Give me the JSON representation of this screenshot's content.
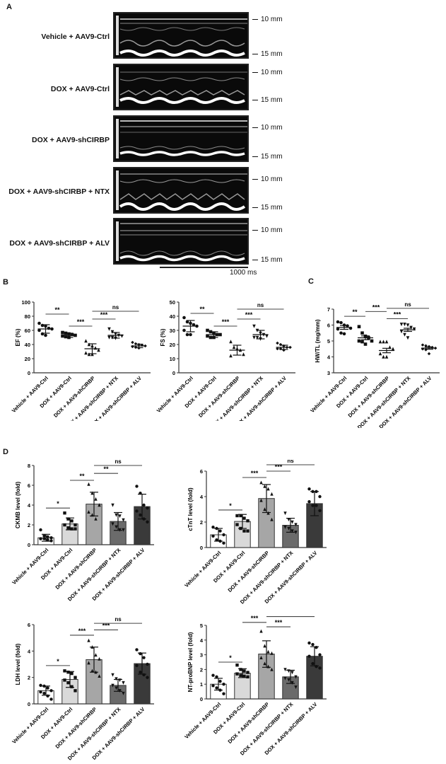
{
  "panels": {
    "A": {
      "letter": "A"
    },
    "B": {
      "letter": "B"
    },
    "C": {
      "letter": "C"
    },
    "D": {
      "letter": "D"
    }
  },
  "echo": {
    "rows": [
      {
        "label": "Vehicle + AAV9-Ctrl",
        "mm_top": "10 mm",
        "mm_bottom": "15 mm"
      },
      {
        "label": "DOX + AAV9-Ctrl",
        "mm_top": "10 mm",
        "mm_bottom": "15 mm"
      },
      {
        "label": "DOX + AAV9-shCIRBP",
        "mm_top": "10 mm",
        "mm_bottom": "15 mm"
      },
      {
        "label": "DOX + AAV9-shCIRBP + NTX",
        "mm_top": "10 mm",
        "mm_bottom": "15 mm"
      },
      {
        "label": "DOX + AAV9-shCIRBP + ALV",
        "mm_top": "10 mm",
        "mm_bottom": "15 mm"
      }
    ],
    "scale_label": "1000 ms"
  },
  "groups": [
    "Vehicle + AAV9-Ctrl",
    "DOX + AAV9-Ctrl",
    "DOX + AAV9-shCIRBP",
    "DOX + AAV9-shCIRBP + NTX",
    "DOX + AAV9-shCIRBP + ALV"
  ],
  "chart_data": [
    {
      "id": "EF",
      "panel": "B",
      "type": "scatter",
      "title": "",
      "xlabel": "",
      "ylabel": "EF (%)",
      "ylim": [
        0,
        100
      ],
      "yticks": [
        0,
        20,
        40,
        60,
        80,
        100
      ],
      "categories": [
        "Vehicle + AAV9-Ctrl",
        "DOX + AAV9-Ctrl",
        "DOX + AAV9-shCIRBP",
        "DOX + AAV9-shCIRBP + NTX",
        "DOX + AAV9-shCIRBP + ALV"
      ],
      "means": [
        62,
        53,
        34,
        53,
        38
      ],
      "sd": [
        6,
        3,
        7,
        4,
        2.5
      ],
      "points": [
        [
          70,
          67,
          66,
          63,
          62,
          60,
          55,
          53
        ],
        [
          57,
          56,
          55,
          54,
          53,
          52,
          51,
          50
        ],
        [
          45,
          40,
          38,
          35,
          32,
          28,
          26,
          26
        ],
        [
          62,
          58,
          55,
          53,
          52,
          50,
          50,
          49
        ],
        [
          43,
          41,
          40,
          39,
          38,
          37,
          36,
          35
        ]
      ],
      "markers": [
        "circle",
        "square",
        "triangle",
        "triangle-down",
        "diamond"
      ],
      "significance": [
        {
          "from": 0,
          "to": 1,
          "label": "**",
          "y": 83
        },
        {
          "from": 1,
          "to": 2,
          "label": "***",
          "y": 66
        },
        {
          "from": 2,
          "to": 3,
          "label": "***",
          "y": 76
        },
        {
          "from": 2,
          "to": 4,
          "label": "ns",
          "y": 87
        }
      ]
    },
    {
      "id": "FS",
      "panel": "B",
      "type": "scatter",
      "title": "",
      "xlabel": "",
      "ylabel": "FS (%)",
      "ylim": [
        0,
        50
      ],
      "yticks": [
        0,
        10,
        20,
        30,
        40,
        50
      ],
      "categories": [
        "Vehicle + AAV9-Ctrl",
        "DOX + AAV9-Ctrl",
        "DOX + AAV9-shCIRBP",
        "DOX + AAV9-shCIRBP + NTX",
        "DOX + AAV9-shCIRBP + ALV"
      ],
      "means": [
        33,
        27,
        16,
        27,
        18
      ],
      "sd": [
        4,
        2,
        3.5,
        3,
        1.5
      ],
      "points": [
        [
          39,
          36,
          35,
          34,
          33,
          30,
          27,
          27
        ],
        [
          30,
          29,
          28,
          27,
          27,
          26,
          25,
          25
        ],
        [
          22,
          18,
          17,
          16,
          13,
          12
        ],
        [
          33,
          30,
          28,
          27,
          26,
          25,
          25,
          24
        ],
        [
          21,
          20,
          19,
          18,
          18,
          17,
          17,
          16
        ]
      ],
      "markers": [
        "circle",
        "square",
        "triangle",
        "triangle-down",
        "diamond"
      ],
      "significance": [
        {
          "from": 0,
          "to": 1,
          "label": "**",
          "y": 42
        },
        {
          "from": 1,
          "to": 2,
          "label": "***",
          "y": 33
        },
        {
          "from": 2,
          "to": 3,
          "label": "***",
          "y": 38
        },
        {
          "from": 2,
          "to": 4,
          "label": "ns",
          "y": 45
        }
      ]
    },
    {
      "id": "HWTL",
      "panel": "C",
      "type": "scatter",
      "title": "",
      "xlabel": "",
      "ylabel": "HW/TL (mg/mm)",
      "ylim": [
        3,
        7
      ],
      "yticks": [
        3,
        4,
        5,
        6,
        7
      ],
      "categories": [
        "Vehicle + AAV9-Ctrl",
        "DOX + AAV9-Ctrl",
        "DOX + AAV9-shCIRBP",
        "DOX + AAV9-shCIRBP + NTX",
        "DOX + AAV9-shCIRBP + ALV"
      ],
      "means": [
        5.85,
        5.2,
        4.4,
        5.7,
        4.55
      ],
      "sem": [
        0.12,
        0.12,
        0.14,
        0.1,
        0.07
      ],
      "points": [
        [
          6.2,
          6.15,
          6.0,
          5.95,
          5.8,
          5.75,
          5.5,
          5.45
        ],
        [
          5.9,
          5.5,
          5.3,
          5.2,
          5.0,
          5.0,
          4.95,
          4.8
        ],
        [
          4.95,
          4.95,
          4.95,
          4.6,
          4.5,
          4.2,
          4.0,
          4.0
        ],
        [
          6.05,
          6.05,
          6.0,
          5.85,
          5.75,
          5.6,
          5.4,
          5.2
        ],
        [
          4.75,
          4.7,
          4.65,
          4.6,
          4.55,
          4.5,
          4.45,
          4.2
        ]
      ],
      "markers": [
        "circle",
        "square",
        "triangle",
        "triangle-down",
        "diamond"
      ],
      "significance": [
        {
          "from": 0,
          "to": 1,
          "label": "**",
          "y": 6.55
        },
        {
          "from": 1,
          "to": 2,
          "label": "***",
          "y": 6.85
        },
        {
          "from": 2,
          "to": 3,
          "label": "***",
          "y": 6.4
        },
        {
          "from": 2,
          "to": 4,
          "label": "ns",
          "y": 7.05
        }
      ]
    },
    {
      "id": "CKMB",
      "panel": "D",
      "type": "bar",
      "title": "",
      "xlabel": "",
      "ylabel": "CKMB level (fold)",
      "ylim": [
        0,
        8
      ],
      "yticks": [
        0,
        2,
        4,
        6,
        8
      ],
      "categories": [
        "Vehicle + AAV9-Ctrl",
        "DOX + AAV9-Ctrl",
        "DOX + AAV9-shCIRBP",
        "DOX + AAV9-shCIRBP + NTX",
        "DOX + AAV9-shCIRBP + ALV"
      ],
      "values": [
        0.7,
        2.1,
        4.1,
        2.35,
        3.85
      ],
      "sd": [
        0.35,
        0.6,
        1.2,
        0.9,
        1.25
      ],
      "bar_colors": [
        "#ffffff",
        "#d9d9d9",
        "#a6a6a6",
        "#6b6b6b",
        "#3a3a3a"
      ],
      "points": [
        [
          1.5,
          0.9,
          0.8,
          0.7,
          0.6,
          0.6,
          0.5,
          0.4
        ],
        [
          3.2,
          2.6,
          2.4,
          2.0,
          2.0,
          1.7,
          1.6,
          1.6
        ],
        [
          6.1,
          5.2,
          4.6,
          4.0,
          3.3,
          3.0,
          2.6
        ],
        [
          4.0,
          3.0,
          2.9,
          2.5,
          2.1,
          1.8,
          1.5,
          1.5
        ],
        [
          5.9,
          5.2,
          4.0,
          3.7,
          3.4,
          3.0,
          2.6,
          2.3
        ]
      ],
      "significance": [
        {
          "from": 0,
          "to": 1,
          "label": "*",
          "y": 3.7
        },
        {
          "from": 1,
          "to": 2,
          "label": "**",
          "y": 6.5
        },
        {
          "from": 2,
          "to": 3,
          "label": "**",
          "y": 7.2
        },
        {
          "from": 2,
          "to": 4,
          "label": "ns",
          "y": 8.0
        }
      ]
    },
    {
      "id": "cTnT",
      "panel": "D",
      "type": "bar",
      "title": "",
      "xlabel": "",
      "ylabel": "cTnT level (fold)",
      "ylim": [
        0,
        6
      ],
      "yticks": [
        0,
        2,
        4,
        6
      ],
      "categories": [
        "Vehicle + AAV9-Ctrl",
        "DOX + AAV9-Ctrl",
        "DOX + AAV9-shCIRBP",
        "DOX + AAV9-shCIRBP + NTX",
        "DOX + AAV9-shCIRBP + ALV"
      ],
      "values": [
        1.0,
        2.05,
        3.85,
        1.75,
        3.45
      ],
      "sd": [
        0.5,
        0.55,
        1.1,
        0.55,
        0.95
      ],
      "bar_colors": [
        "#ffffff",
        "#d9d9d9",
        "#a6a6a6",
        "#6b6b6b",
        "#3a3a3a"
      ],
      "points": [
        [
          1.6,
          1.5,
          1.3,
          1.0,
          0.9,
          0.6,
          0.5,
          0.35
        ],
        [
          2.5,
          2.5,
          2.3,
          2.1,
          1.8,
          1.5,
          1.3,
          1.3
        ],
        [
          5.1,
          4.8,
          4.6,
          4.2,
          3.7,
          3.0,
          2.7,
          2.2
        ],
        [
          2.7,
          2.2,
          2.0,
          1.8,
          1.6,
          1.5,
          1.3,
          1.2
        ],
        [
          4.6,
          4.4,
          4.4,
          4.0,
          3.6,
          3.3,
          3.3,
          2.9
        ]
      ],
      "significance": [
        {
          "from": 0,
          "to": 1,
          "label": "*",
          "y": 2.95
        },
        {
          "from": 1,
          "to": 2,
          "label": "***",
          "y": 5.5
        },
        {
          "from": 2,
          "to": 3,
          "label": "***",
          "y": 6.0
        },
        {
          "from": 2,
          "to": 4,
          "label": "ns",
          "y": 6.5
        }
      ]
    },
    {
      "id": "LDH",
      "panel": "D",
      "type": "bar",
      "title": "",
      "xlabel": "",
      "ylabel": "LDH level (fold)",
      "ylim": [
        0,
        6
      ],
      "yticks": [
        0,
        2,
        4,
        6
      ],
      "categories": [
        "Vehicle + AAV9-Ctrl",
        "DOX + AAV9-Ctrl",
        "DOX + AAV9-shCIRBP",
        "DOX + AAV9-shCIRBP + NTX",
        "DOX + AAV9-shCIRBP + ALV"
      ],
      "values": [
        1.0,
        1.85,
        3.35,
        1.4,
        3.05
      ],
      "sd": [
        0.35,
        0.6,
        0.95,
        0.45,
        0.8
      ],
      "bar_colors": [
        "#ffffff",
        "#d9d9d9",
        "#a6a6a6",
        "#6b6b6b",
        "#3a3a3a"
      ],
      "points": [
        [
          1.4,
          1.35,
          1.2,
          1.0,
          0.9,
          0.8,
          0.6,
          0.35
        ],
        [
          2.5,
          2.4,
          2.3,
          2.0,
          1.8,
          1.6,
          1.3,
          1.0
        ],
        [
          4.8,
          4.3,
          3.7,
          3.4,
          3.1,
          2.5,
          2.4,
          2.1
        ],
        [
          2.2,
          1.9,
          1.8,
          1.6,
          1.4,
          1.2,
          1.0,
          0.8
        ],
        [
          4.1,
          3.8,
          3.5,
          3.0,
          2.9,
          2.4,
          2.2,
          2.0
        ]
      ],
      "significance": [
        {
          "from": 0,
          "to": 1,
          "label": "*",
          "y": 2.9
        },
        {
          "from": 1,
          "to": 2,
          "label": "***",
          "y": 5.2
        },
        {
          "from": 2,
          "to": 3,
          "label": "***",
          "y": 5.6
        },
        {
          "from": 2,
          "to": 4,
          "label": "ns",
          "y": 6.1
        }
      ]
    },
    {
      "id": "NTproBNP",
      "panel": "D",
      "type": "bar",
      "title": "",
      "xlabel": "",
      "ylabel": "NT-proBNP level (fold)",
      "ylim": [
        0,
        5
      ],
      "yticks": [
        0,
        1,
        2,
        3,
        4,
        5
      ],
      "categories": [
        "Vehicle + AAV9-Ctrl",
        "DOX + AAV9-Ctrl",
        "DOX + AAV9-shCIRBP",
        "DOX + AAV9-shCIRBP + NTX",
        "DOX + AAV9-shCIRBP + ALV"
      ],
      "values": [
        1.0,
        1.75,
        3.05,
        1.5,
        2.9
      ],
      "sd": [
        0.4,
        0.3,
        0.9,
        0.45,
        0.65
      ],
      "bar_colors": [
        "#ffffff",
        "#d9d9d9",
        "#a6a6a6",
        "#6b6b6b",
        "#3a3a3a"
      ],
      "points": [
        [
          1.6,
          1.5,
          1.2,
          1.0,
          0.9,
          0.75,
          0.6,
          0.35
        ],
        [
          2.3,
          2.0,
          1.9,
          1.8,
          1.7,
          1.6,
          1.55,
          1.5
        ],
        [
          4.6,
          3.6,
          3.2,
          3.1,
          2.8,
          2.4,
          2.2,
          2.0
        ],
        [
          2.0,
          1.9,
          1.8,
          1.5,
          1.4,
          1.3,
          1.1,
          0.8
        ],
        [
          3.8,
          3.7,
          3.5,
          3.0,
          2.9,
          2.4,
          2.2,
          2.1
        ]
      ],
      "significance": [
        {
          "from": 0,
          "to": 1,
          "label": "*",
          "y": 2.5
        },
        {
          "from": 1,
          "to": 2,
          "label": "***",
          "y": 5.2
        },
        {
          "from": 2,
          "to": 3,
          "label": "***",
          "y": 4.9
        },
        {
          "from": 2,
          "to": 4,
          "label": "ns",
          "y": 5.6
        }
      ]
    }
  ]
}
